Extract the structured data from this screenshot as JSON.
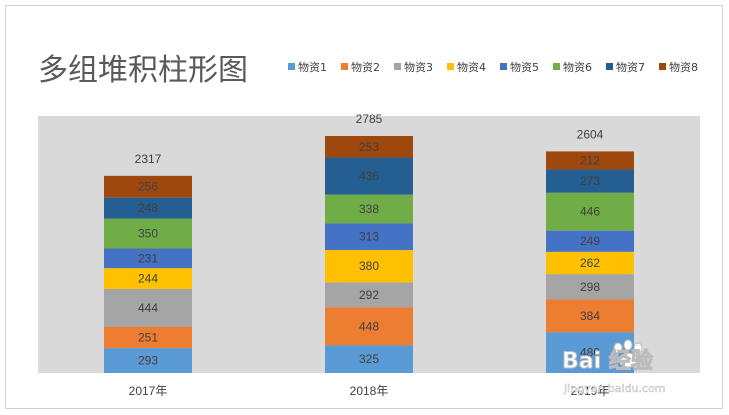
{
  "chart_data": {
    "type": "bar",
    "stacked": true,
    "title": "多组堆积柱形图",
    "categories": [
      "2017年",
      "2018年",
      "2019年"
    ],
    "totals": [
      2317,
      2785,
      2604
    ],
    "series": [
      {
        "name": "物资1",
        "color": "#5B9BD5",
        "values": [
          293,
          325,
          480
        ]
      },
      {
        "name": "物资2",
        "color": "#ED7D31",
        "values": [
          251,
          448,
          384
        ]
      },
      {
        "name": "物资3",
        "color": "#A5A5A5",
        "values": [
          444,
          292,
          298
        ]
      },
      {
        "name": "物资4",
        "color": "#FFC000",
        "values": [
          244,
          380,
          262
        ]
      },
      {
        "name": "物资5",
        "color": "#4472C4",
        "values": [
          231,
          313,
          249
        ]
      },
      {
        "name": "物资6",
        "color": "#70AD47",
        "values": [
          350,
          338,
          446
        ]
      },
      {
        "name": "物资7",
        "color": "#255E91",
        "values": [
          248,
          436,
          273
        ]
      },
      {
        "name": "物资8",
        "color": "#9E480E",
        "values": [
          256,
          253,
          212
        ]
      }
    ],
    "legend_position": "top-right",
    "plot_background": "#D9D9D9",
    "grid": false
  },
  "watermark": {
    "main": "Bai 经验",
    "sub": "jingyan.baidu.com"
  }
}
